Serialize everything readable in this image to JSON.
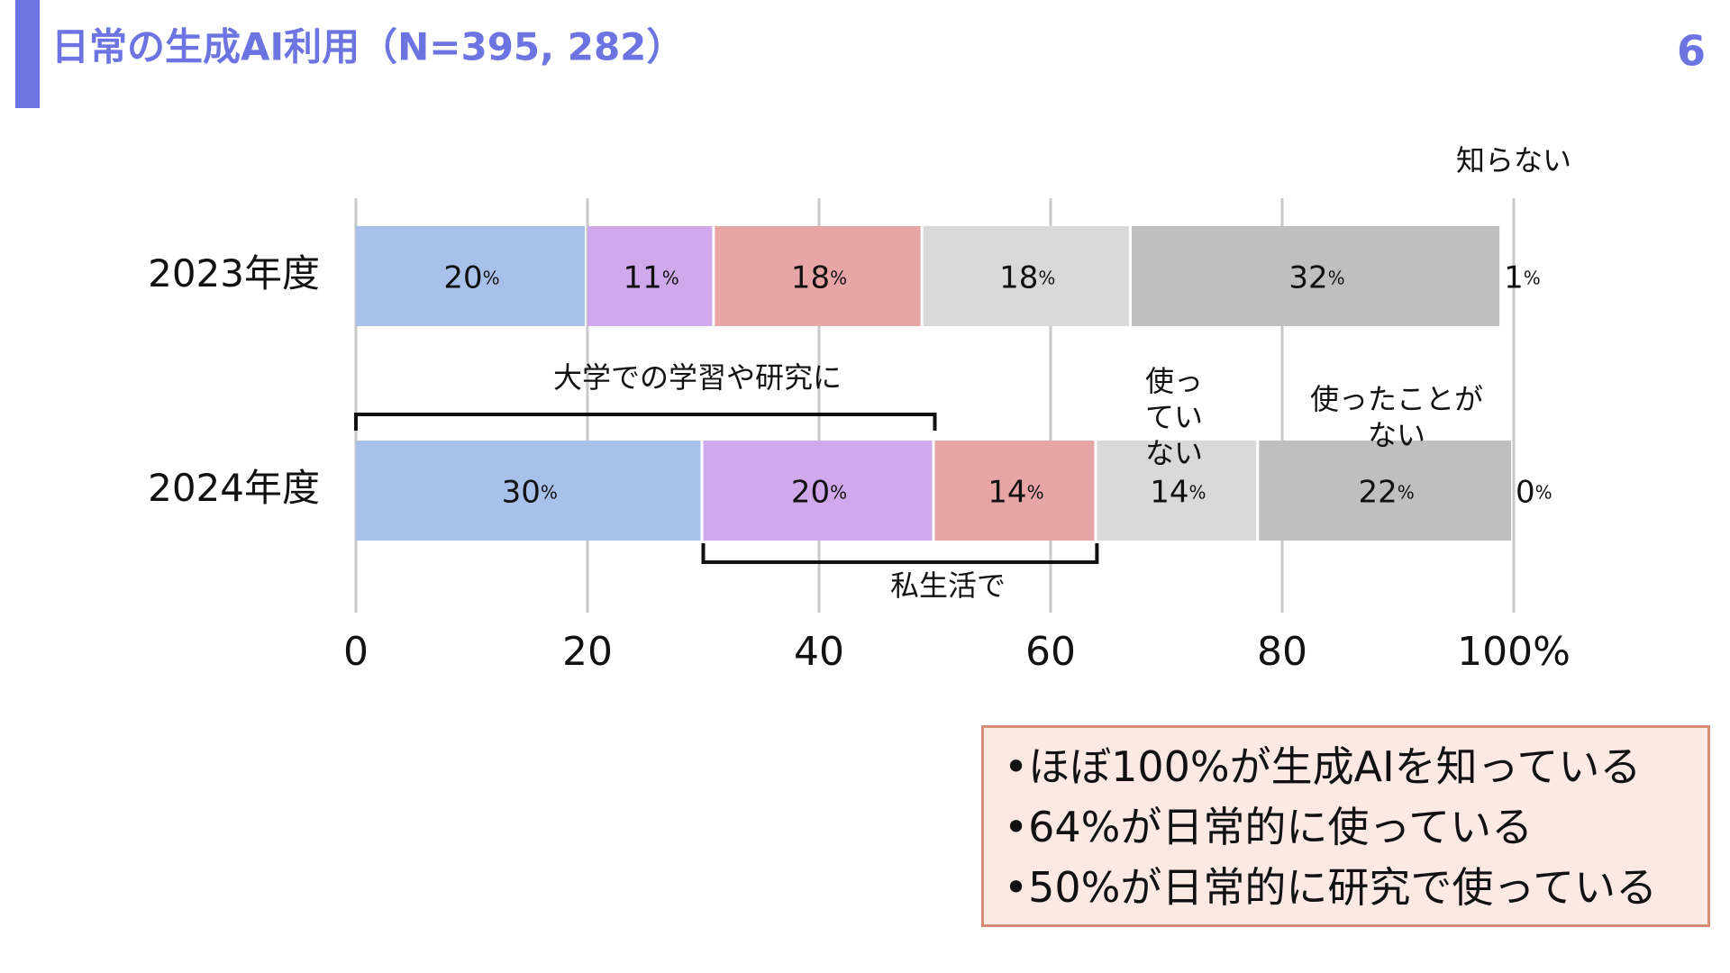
{
  "header": {
    "title": "日常の生成AI利用（N=395, 282）",
    "page_number": "6"
  },
  "chart_data": {
    "type": "stacked-bar-horizontal",
    "categories": [
      "2023年度",
      "2024年度"
    ],
    "series": [
      {
        "color": "#a7c1ea",
        "values": [
          20,
          30
        ],
        "value_labels": [
          "20%",
          "30%"
        ]
      },
      {
        "color": "#d2a8ec",
        "values": [
          11,
          20
        ],
        "value_labels": [
          "11%",
          "20%"
        ]
      },
      {
        "color": "#e8a5a5",
        "values": [
          18,
          14
        ],
        "value_labels": [
          "18%",
          "14%"
        ]
      },
      {
        "name": "使っていない",
        "color": "#d9d9d9",
        "values": [
          18,
          14
        ],
        "value_labels": [
          "18%",
          "14%"
        ]
      },
      {
        "name": "使ったことがない",
        "color": "#bfbfbf",
        "values": [
          32,
          22
        ],
        "value_labels": [
          "32%",
          "22%"
        ]
      },
      {
        "name": "知らない",
        "values": [
          1,
          0
        ],
        "value_labels": [
          "1%",
          "0%"
        ]
      }
    ],
    "annotations": [
      "大学での学習や研究に",
      "私生活で"
    ],
    "xlim": [
      0,
      100
    ],
    "xticks": [
      0,
      20,
      40,
      60,
      80,
      {
        "value": 100,
        "label": "100%"
      }
    ],
    "grid": true
  },
  "summary": [
    "•ほぼ100%が生成AIを知っている",
    "•64%が日常的に使っている",
    "•50%が日常的に研究で使っている"
  ]
}
